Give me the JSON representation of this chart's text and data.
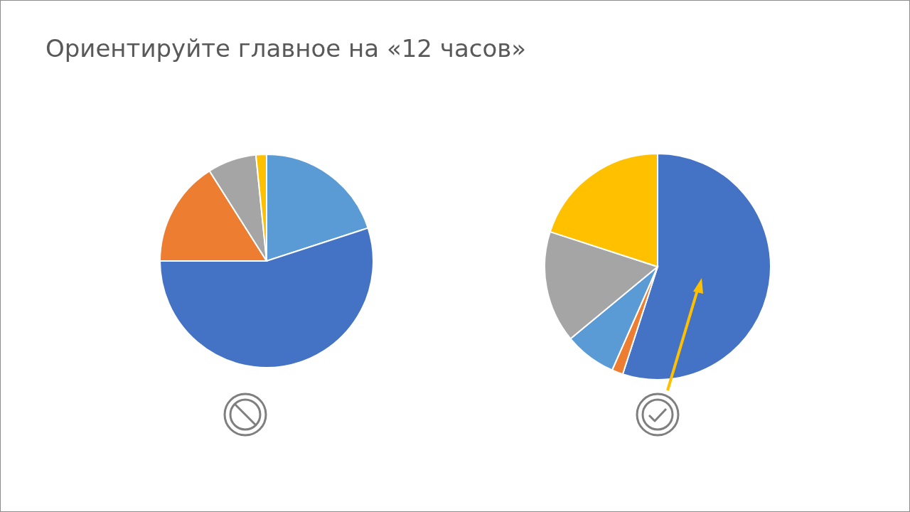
{
  "chart_data": [
    {
      "type": "pie",
      "title": "Ориентируйте главное на «12 часов»",
      "categories": [
        null,
        null,
        null,
        null,
        null
      ],
      "values": [
        20,
        55,
        16,
        7.4,
        1.6
      ],
      "colors": [
        "#5b9bd5",
        "#4472c4",
        "#ed7d31",
        "#a5a5a5",
        "#ffc000"
      ]
    },
    {
      "type": "pie",
      "categories": [
        null,
        null,
        null,
        null,
        null
      ],
      "values": [
        55,
        1.6,
        7.4,
        16,
        20
      ],
      "colors": [
        "#4472c4",
        "#ed7d31",
        "#5b9bd5",
        "#a5a5a5",
        "#ffc000"
      ]
    }
  ]
}
